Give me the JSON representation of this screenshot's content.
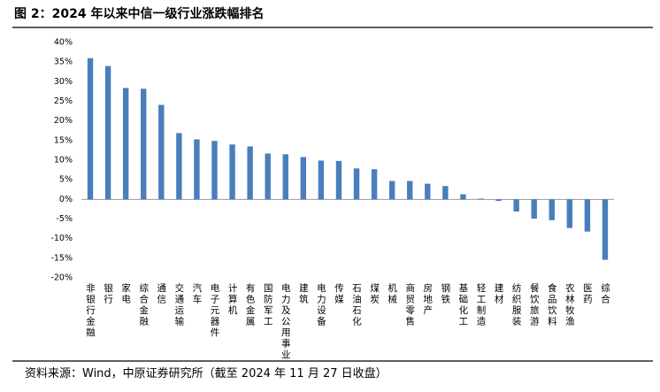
{
  "chart_data": {
    "type": "bar",
    "title": "图 2：2024 年以来中信一级行业涨跌幅排名",
    "source": "资料来源：Wind，中原证券研究所（截至 2024 年 11 月 27 日收盘）",
    "categories": [
      "非银行金融",
      "银行",
      "家电",
      "综合金融",
      "通信",
      "交通运输",
      "汽车",
      "电子元器件",
      "计算机",
      "有色金属",
      "国防军工",
      "电力及公用事业",
      "建筑",
      "电力设备",
      "传媒",
      "石油石化",
      "煤炭",
      "机械",
      "商贸零售",
      "房地产",
      "钢铁",
      "基础化工",
      "轻工制造",
      "建材",
      "纺织服装",
      "餐饮旅游",
      "食品饮料",
      "农林牧渔",
      "医药",
      "综合"
    ],
    "values": [
      36.0,
      34.0,
      28.4,
      28.2,
      24.1,
      16.9,
      15.3,
      14.9,
      14.0,
      13.5,
      11.7,
      11.5,
      10.8,
      9.9,
      9.8,
      7.9,
      7.7,
      4.7,
      4.7,
      4.0,
      3.4,
      1.3,
      0.2,
      -0.4,
      -3.1,
      -4.9,
      -5.3,
      -7.3,
      -8.2,
      -15.4
    ],
    "color": "#4a7ebb",
    "ylim": [
      -20,
      40
    ],
    "yticks": [
      {
        "value": -20,
        "label": "-20%"
      },
      {
        "value": -15,
        "label": "-15%"
      },
      {
        "value": -10,
        "label": "-10%"
      },
      {
        "value": -5,
        "label": "-5%"
      },
      {
        "value": 0,
        "label": "0%"
      },
      {
        "value": 5,
        "label": "5%"
      },
      {
        "value": 10,
        "label": "10%"
      },
      {
        "value": 15,
        "label": "15%"
      },
      {
        "value": 20,
        "label": "20%"
      },
      {
        "value": 25,
        "label": "25%"
      },
      {
        "value": 30,
        "label": "30%"
      },
      {
        "value": 35,
        "label": "35%"
      },
      {
        "value": 40,
        "label": "40%"
      }
    ],
    "grid": false
  }
}
